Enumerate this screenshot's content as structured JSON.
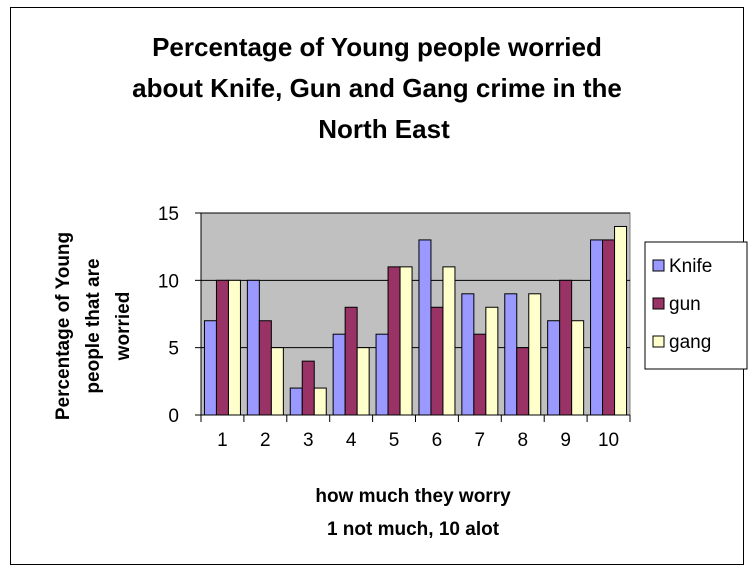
{
  "chart_data": {
    "type": "bar",
    "title_lines": [
      "Percentage of Young people worried",
      "about Knife, Gun and Gang crime in the",
      "North East"
    ],
    "xlabel_lines": [
      "how much they worry",
      "1 not much, 10 alot"
    ],
    "ylabel_lines": [
      "Percentage of Young",
      "people that are",
      "worried"
    ],
    "categories": [
      "1",
      "2",
      "3",
      "4",
      "5",
      "6",
      "7",
      "8",
      "9",
      "10"
    ],
    "y_ticks": [
      "0",
      "5",
      "10",
      "15"
    ],
    "ylim": [
      0,
      15
    ],
    "grid": true,
    "legend_position": "right",
    "plot_background": "#c0c0c0",
    "series": [
      {
        "name": "Knife",
        "color": "#9999ff",
        "values": [
          7,
          10,
          2,
          6,
          6,
          13,
          9,
          9,
          7,
          13
        ]
      },
      {
        "name": "gun",
        "color": "#993366",
        "values": [
          10,
          7,
          4,
          8,
          11,
          8,
          6,
          5,
          10,
          13
        ]
      },
      {
        "name": "gang",
        "color": "#ffffcc",
        "values": [
          10,
          5,
          2,
          5,
          11,
          11,
          8,
          9,
          7,
          14
        ]
      }
    ]
  }
}
